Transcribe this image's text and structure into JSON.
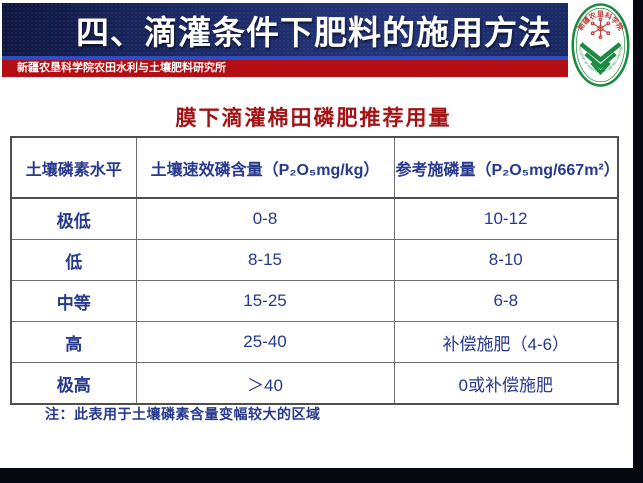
{
  "header": {
    "title": "四、滴灌条件下肥料的施用方法",
    "subtitle": "新疆农垦科学院农田水利与土壤肥料研究所",
    "logo": {
      "name": "xinjiang-academy-emblem",
      "arc_text_top": "新疆农垦科学院",
      "arc_text_bottom": "XINJIANG ACADEMY OF AGRICULTURAL AND RECLAMATION SCIENCE",
      "ring_color": "#1c8a41",
      "flower_color": "#c2403a"
    }
  },
  "content": {
    "table_title": "膜下滴灌棉田磷肥推荐用量",
    "note": "注：此表用于土壤磷素含量变幅较大的区域"
  },
  "table": {
    "columns": [
      "土壤磷素水平",
      "土壤速效磷含量（P₂O₅mg/kg）",
      "参考施磷量（P₂O₅mg/667m²）"
    ],
    "rows": [
      [
        "极低",
        "0-8",
        "10-12"
      ],
      [
        "低",
        "8-15",
        "8-10"
      ],
      [
        "中等",
        "15-25",
        "6-8"
      ],
      [
        "高",
        "25-40",
        "补偿施肥（4-6）"
      ],
      [
        "极高",
        "＞40",
        "0或补偿施肥"
      ]
    ]
  },
  "chart_data": {
    "type": "table",
    "title": "膜下滴灌棉田磷肥推荐用量",
    "columns": [
      "土壤磷素水平",
      "土壤速效磷含量（P₂O₅mg/kg）",
      "参考施磷量（P₂O₅mg/667m²）"
    ],
    "rows": [
      [
        "极低",
        "0-8",
        "10-12"
      ],
      [
        "低",
        "8-15",
        "8-10"
      ],
      [
        "中等",
        "15-25",
        "6-8"
      ],
      [
        "高",
        "25-40",
        "补偿施肥（4-6）"
      ],
      [
        "极高",
        "＞40",
        "0或补偿施肥"
      ]
    ],
    "note": "注：此表用于土壤磷素含量变幅较大的区域"
  },
  "colors": {
    "header_navy": "#1b2a66",
    "header_accent_blue": "#2c4ec2",
    "bar_red": "#b30e13",
    "table_title_red": "#a21315",
    "table_text_navy": "#26398e",
    "logo_green": "#1c8a41",
    "logo_red": "#c2403a",
    "frame_dark": "#07070f"
  }
}
